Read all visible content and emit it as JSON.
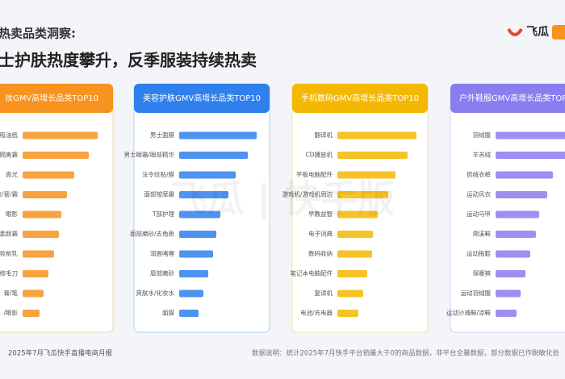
{
  "header": {
    "kicker": "热卖品类洞察:",
    "title": "士护肤热度攀升，反季服装持续热卖",
    "logo": "飞瓜",
    "watermark": "飞瓜 | 快手版"
  },
  "chart_data": [
    {
      "type": "bar",
      "title": "妆GMV高增长品类TOP10",
      "color": "#f7931e",
      "categories": [
        "吸油纸",
        "隔离霜",
        "高光",
        "底液/膏/霜",
        "眼影",
        "素颜霜",
        "妆前乳",
        "修毛刀",
        "膏/笔",
        "/眼影"
      ],
      "values": [
        93,
        82,
        64,
        55,
        48,
        45,
        39,
        32,
        26,
        21
      ]
    },
    {
      "type": "bar",
      "title": "美容护肤GMV高增长品类TOP10",
      "color": "#2f80ed",
      "categories": [
        "男士面膜",
        "男士眼霜/眼部精华",
        "法令纹贴/膜",
        "面部按摩霜",
        "T部护理",
        "面部磨砂/去角质",
        "润唇啫喱",
        "唇部磨砂",
        "爽肤水/化妆水",
        "面膜"
      ],
      "values": [
        96,
        85,
        70,
        61,
        51,
        46,
        42,
        36,
        30,
        24
      ]
    },
    {
      "type": "bar",
      "title": "手机数码GMV高增长品类TOP10",
      "color": "#f5b800",
      "categories": [
        "翻译机",
        "CD播放机",
        "平板电脑配件",
        "游戏机/游戏机周边",
        "早教益智",
        "电子词典",
        "数码收纳",
        "笔记本电脑配件",
        "复读机",
        "电池/充电器"
      ],
      "values": [
        98,
        87,
        72,
        63,
        50,
        44,
        43,
        37,
        32,
        26
      ]
    },
    {
      "type": "bar",
      "title": "户外鞋服GMV高增长品类TOP10",
      "color": "#8b7cf0",
      "categories": [
        "羽绒服",
        "羊羔绒",
        "抓绒衣裤",
        "运动风衣",
        "运动马甲",
        "溯溪鞋",
        "运动拖鞋",
        "保暖裤",
        "运动羽绒服",
        "运动沙滩鞋/凉鞋"
      ],
      "values": [
        95,
        88,
        71,
        64,
        54,
        50,
        43,
        37,
        31,
        26
      ]
    }
  ],
  "footer": {
    "source": "2025年7月飞瓜快手直播电商月报",
    "note": "数据说明：统计2025年7月快手平台销量大于0的商品数据，非平台全量数据，部分数据已作脱敏化处"
  }
}
